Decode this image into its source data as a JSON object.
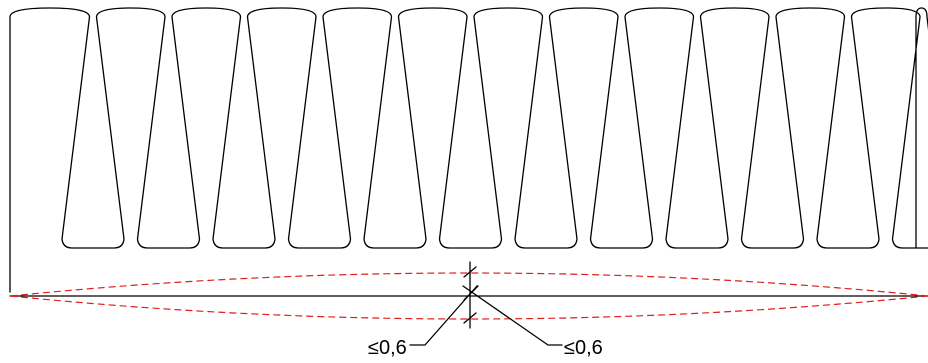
{
  "diagram": {
    "part": "heatsink-profile",
    "fin_count": 12,
    "colors": {
      "outline": "#000000",
      "tolerance_envelope": "#e0201c"
    },
    "flatness_annotations": [
      {
        "id": "left",
        "text": "≤0,6"
      },
      {
        "id": "right",
        "text": "≤0,6"
      }
    ]
  }
}
